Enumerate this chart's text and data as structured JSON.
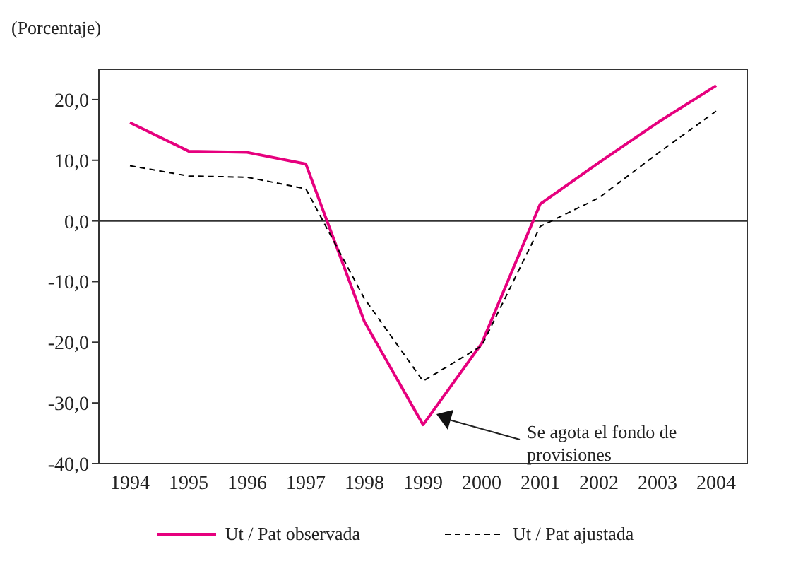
{
  "chart_data": {
    "type": "line",
    "ylabel": "(Porcentaje)",
    "categories": [
      "1994",
      "1995",
      "1996",
      "1997",
      "1998",
      "1999",
      "2000",
      "2001",
      "2002",
      "2003",
      "2004"
    ],
    "series": [
      {
        "name": "Ut / Pat observada",
        "color": "#e6007e",
        "line_style": "solid",
        "values": [
          16.2,
          11.5,
          11.3,
          9.4,
          -16.6,
          -33.6,
          -20.2,
          2.8,
          9.6,
          16.2,
          22.3
        ]
      },
      {
        "name": "Ut / Pat ajustada",
        "color": "#000000",
        "line_style": "dashed",
        "values": [
          9.1,
          7.4,
          7.2,
          5.3,
          -12.8,
          -26.4,
          -20.6,
          -0.9,
          3.8,
          11.1,
          18.1
        ]
      }
    ],
    "ylim": [
      -40,
      25
    ],
    "yticks": [
      {
        "value": -40,
        "label": "-40,0"
      },
      {
        "value": -30,
        "label": "-30,0"
      },
      {
        "value": -20,
        "label": "-20,0"
      },
      {
        "value": -10,
        "label": "-10,0"
      },
      {
        "value": 0,
        "label": "0,0"
      },
      {
        "value": 10,
        "label": "10,0"
      },
      {
        "value": 20,
        "label": "20,0"
      }
    ],
    "ref_lines": [
      {
        "axis": "y",
        "value": 0,
        "color": "#333333"
      }
    ],
    "annotations": [
      "Se agota el fondo de provisiones"
    ],
    "marker": "none",
    "legend": "bottom"
  }
}
